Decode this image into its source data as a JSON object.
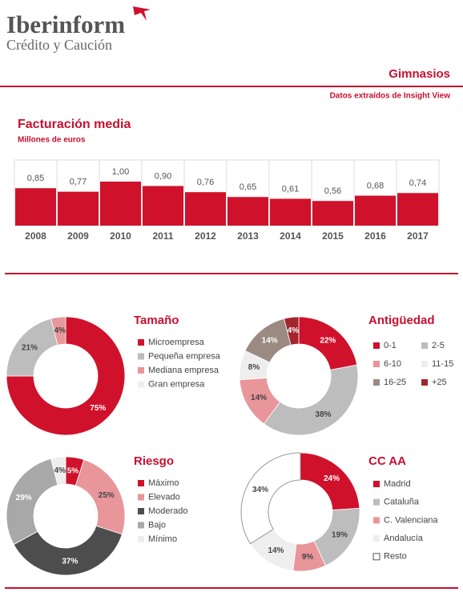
{
  "header": {
    "logo": "Iberinform",
    "logo_subtitle": "Crédito y Caución",
    "title": "Gimnasios",
    "source": "Datos extraídos de Insight View"
  },
  "chart_data": [
    {
      "type": "bar",
      "title": "Facturación media",
      "subtitle": "Millones de euros",
      "categories": [
        "2008",
        "2009",
        "2010",
        "2011",
        "2012",
        "2013",
        "2014",
        "2015",
        "2016",
        "2017"
      ],
      "values": [
        0.85,
        0.77,
        1.0,
        0.9,
        0.76,
        0.65,
        0.61,
        0.56,
        0.68,
        0.74
      ],
      "value_labels": [
        "0,85",
        "0,77",
        "1,00",
        "0,90",
        "0,76",
        "0,65",
        "0,61",
        "0,56",
        "0,68",
        "0,74"
      ],
      "color": "#d0112b"
    },
    {
      "type": "pie",
      "title": "Tamaño",
      "categories": [
        "Microempresa",
        "Pequeña empresa",
        "Mediana empresa",
        "Gran empresa"
      ],
      "values": [
        75,
        21,
        4,
        0
      ],
      "value_labels": [
        "75%",
        "21%",
        "4%",
        null
      ],
      "colors": [
        "#d0112b",
        "#bdbdbd",
        "#e8969a",
        "#eeeeee"
      ]
    },
    {
      "type": "pie",
      "title": "Antigüedad",
      "categories": [
        "0-1",
        "2-5",
        "6-10",
        "11-15",
        "16-25",
        "+25"
      ],
      "values": [
        22,
        38,
        14,
        8,
        14,
        4
      ],
      "value_labels": [
        "22%",
        "38%",
        "14%",
        "8%",
        "14%",
        "4%"
      ],
      "colors": [
        "#d0112b",
        "#bdbdbd",
        "#e8969a",
        "#eeeeee",
        "#9b8a82",
        "#a3262e"
      ]
    },
    {
      "type": "pie",
      "title": "Riesgo",
      "categories": [
        "Máximo",
        "Elevado",
        "Moderado",
        "Bajo",
        "Mínimo"
      ],
      "values": [
        5,
        25,
        37,
        29,
        4
      ],
      "value_labels": [
        "5%",
        "25%",
        "37%",
        "29%",
        "4%"
      ],
      "colors": [
        "#d0112b",
        "#e8969a",
        "#4d4d4d",
        "#a8a8a8",
        "#eeeeee"
      ]
    },
    {
      "type": "pie",
      "title": "CC AA",
      "categories": [
        "Madrid",
        "Cataluña",
        "C. Valenciana",
        "Andalucía",
        "Resto"
      ],
      "values": [
        24,
        19,
        9,
        14,
        34
      ],
      "value_labels": [
        "24%",
        "19%",
        "9%",
        "14%",
        "34%"
      ],
      "colors": [
        "#d0112b",
        "#bdbdbd",
        "#e8969a",
        "#eeeeee",
        "#ffffff"
      ]
    }
  ]
}
